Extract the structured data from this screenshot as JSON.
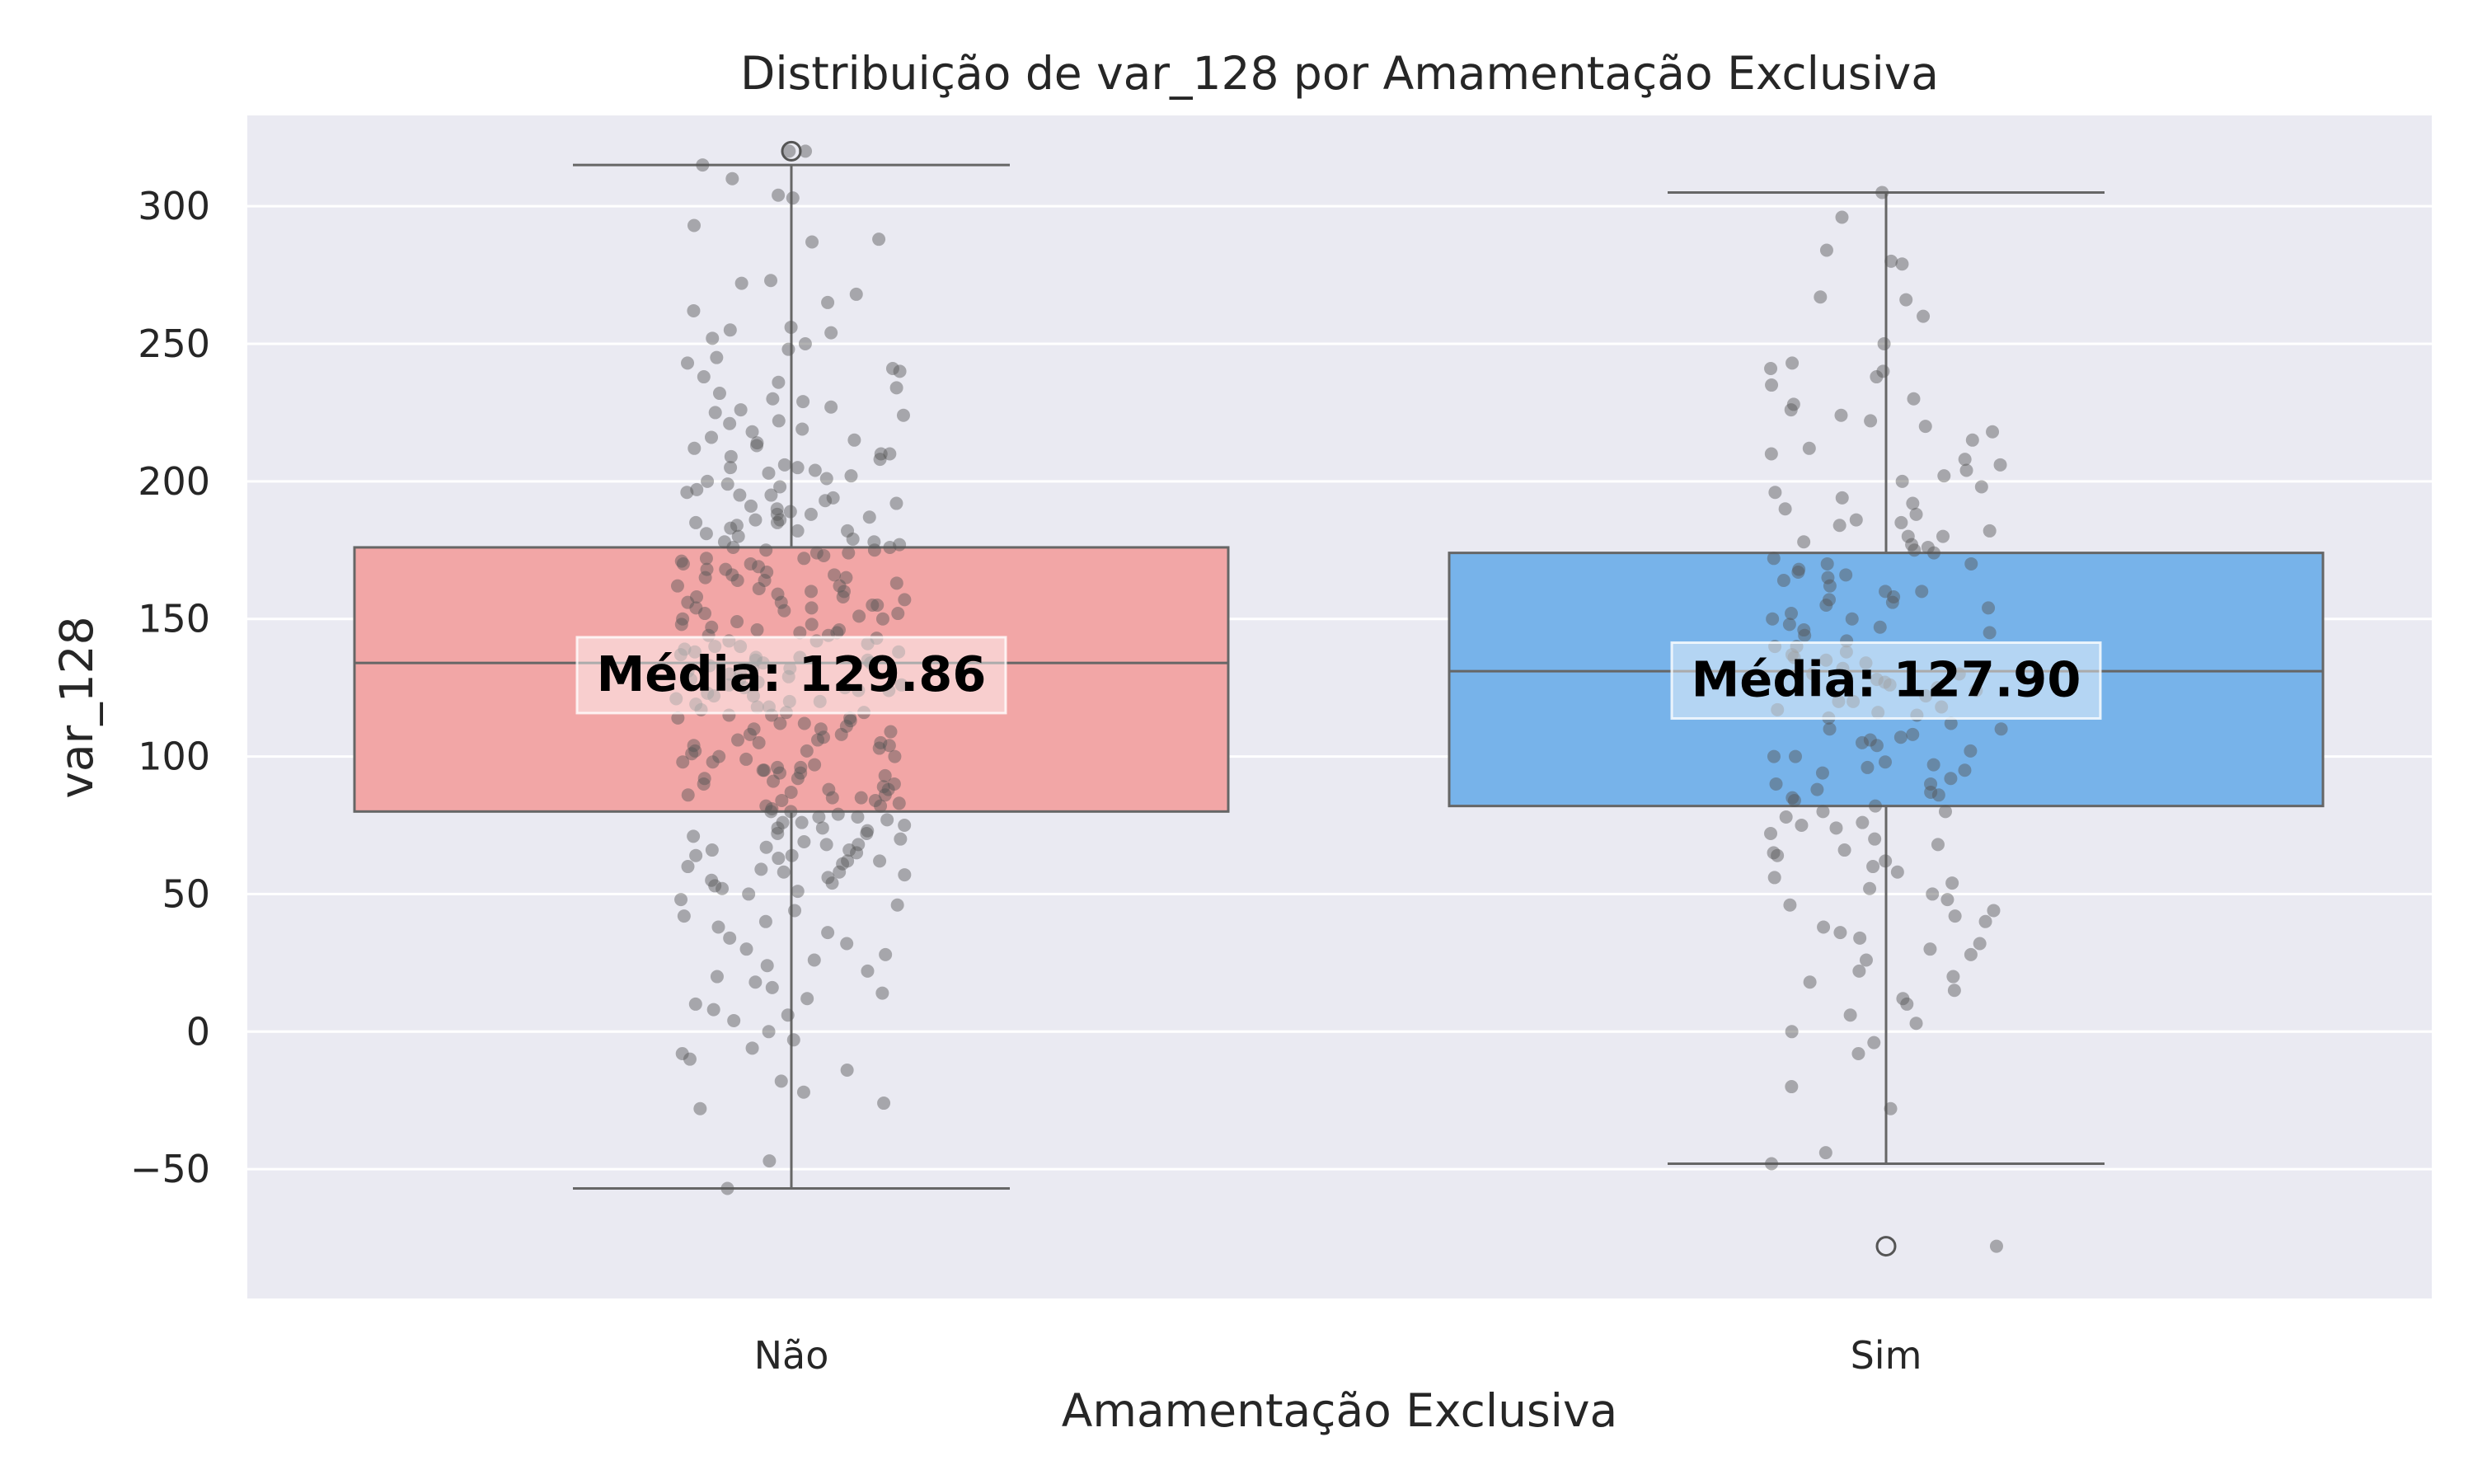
{
  "chart_data": {
    "type": "box",
    "title": "Distribuição de var_128 por Amamentação Exclusiva",
    "xlabel": "Amamentação Exclusiva",
    "ylabel": "var_128",
    "categories": [
      "Não",
      "Sim"
    ],
    "ylim": [
      -97,
      333
    ],
    "yticks": [
      -50,
      0,
      50,
      100,
      150,
      200,
      250,
      300
    ],
    "ytick_labels": [
      "−50",
      "0",
      "50",
      "100",
      "150",
      "200",
      "250",
      "300"
    ],
    "grid": true,
    "background": "#eaeaf2",
    "boxes": [
      {
        "category": "Não",
        "color": "#f2a6a6",
        "q1": 80,
        "median": 134,
        "q3": 176,
        "whisker_low": -57,
        "whisker_high": 315,
        "outliers": [
          320
        ],
        "mean_label": "Média: 129.86",
        "mean": 129.86
      },
      {
        "category": "Sim",
        "color": "#77b3ea",
        "q1": 82,
        "median": 131,
        "q3": 174,
        "whisker_low": -48,
        "whisker_high": 305,
        "outliers": [
          -78
        ],
        "mean_label": "Média: 127.90",
        "mean": 127.9
      }
    ],
    "points": {
      "color": "#555555",
      "Não": [
        320,
        320,
        315,
        310,
        304,
        303,
        293,
        288,
        287,
        273,
        272,
        268,
        265,
        262,
        256,
        255,
        254,
        252,
        250,
        248,
        245,
        243,
        241,
        240,
        238,
        236,
        234,
        232,
        230,
        229,
        227,
        226,
        225,
        224,
        222,
        221,
        219,
        218,
        216,
        215,
        214,
        213,
        212,
        210,
        209,
        208,
        206,
        205,
        204,
        203,
        202,
        201,
        200,
        199,
        198,
        197,
        196,
        195,
        194,
        193,
        192,
        191,
        190,
        189,
        188,
        187,
        186,
        185,
        184,
        183,
        182,
        181,
        180,
        179,
        178,
        177,
        176,
        175,
        174,
        173,
        172,
        171,
        170,
        169,
        168,
        167,
        166,
        165,
        164,
        163,
        162,
        161,
        160,
        159,
        158,
        157,
        156,
        155,
        154,
        153,
        152,
        151,
        150,
        149,
        148,
        147,
        146,
        145,
        144,
        143,
        142,
        141,
        140,
        139,
        138,
        137,
        136,
        135,
        134,
        133,
        132,
        131,
        130,
        129,
        128,
        127,
        126,
        125,
        124,
        123,
        122,
        121,
        120,
        119,
        118,
        117,
        116,
        115,
        114,
        113,
        112,
        111,
        110,
        109,
        108,
        107,
        106,
        105,
        104,
        103,
        102,
        101,
        100,
        99,
        98,
        97,
        96,
        95,
        94,
        93,
        92,
        91,
        90,
        89,
        88,
        87,
        86,
        85,
        84,
        83,
        82,
        81,
        80,
        79,
        78,
        77,
        76,
        75,
        74,
        73,
        72,
        71,
        70,
        69,
        68,
        67,
        66,
        65,
        64,
        63,
        62,
        61,
        60,
        59,
        58,
        57,
        56,
        55,
        54,
        53,
        52,
        51,
        50,
        48,
        46,
        44,
        42,
        40,
        38,
        36,
        34,
        32,
        30,
        28,
        26,
        24,
        22,
        20,
        18,
        16,
        14,
        12,
        10,
        8,
        6,
        4,
        0,
        -3,
        -6,
        -8,
        -10,
        -14,
        -18,
        -22,
        -26,
        -28,
        -47,
        -57,
        175,
        170,
        165,
        160,
        155,
        150,
        145,
        140,
        135,
        130,
        125,
        120,
        115,
        110,
        105,
        100,
        95,
        90,
        85,
        80,
        185,
        178,
        168,
        158,
        148,
        138,
        128,
        118,
        108,
        98,
        88,
        78,
        68,
        58,
        195,
        188,
        172,
        162,
        152,
        142,
        132,
        122,
        112,
        102,
        92,
        82,
        72,
        62,
        205,
        182,
        174,
        164,
        154,
        144,
        134,
        124,
        114,
        104,
        94,
        84,
        74,
        64,
        210,
        186,
        176,
        166,
        156,
        146,
        136,
        126,
        116,
        106,
        96,
        86,
        76,
        66
      ],
      "Sim": [
        305,
        296,
        284,
        280,
        279,
        267,
        266,
        260,
        250,
        243,
        241,
        240,
        238,
        235,
        230,
        228,
        226,
        224,
        222,
        220,
        218,
        215,
        212,
        210,
        208,
        206,
        204,
        202,
        200,
        198,
        196,
        194,
        192,
        190,
        188,
        186,
        184,
        182,
        180,
        178,
        176,
        174,
        172,
        170,
        168,
        166,
        164,
        162,
        160,
        158,
        156,
        154,
        152,
        150,
        148,
        146,
        144,
        142,
        140,
        138,
        136,
        134,
        132,
        130,
        128,
        126,
        124,
        122,
        120,
        118,
        116,
        114,
        112,
        110,
        108,
        106,
        104,
        102,
        100,
        98,
        96,
        94,
        92,
        90,
        88,
        86,
        84,
        82,
        80,
        78,
        76,
        74,
        72,
        70,
        68,
        66,
        64,
        62,
        60,
        58,
        56,
        54,
        52,
        50,
        48,
        46,
        44,
        42,
        40,
        38,
        36,
        34,
        32,
        30,
        28,
        26,
        22,
        20,
        18,
        15,
        12,
        10,
        6,
        3,
        0,
        -4,
        -8,
        -20,
        -28,
        -44,
        -48,
        -78,
        175,
        165,
        155,
        145,
        135,
        125,
        115,
        105,
        95,
        85,
        75,
        65,
        180,
        170,
        160,
        150,
        140,
        130,
        120,
        110,
        100,
        90,
        80,
        185,
        177,
        167,
        157,
        147,
        137,
        127,
        117,
        107,
        97,
        87
      ]
    }
  }
}
